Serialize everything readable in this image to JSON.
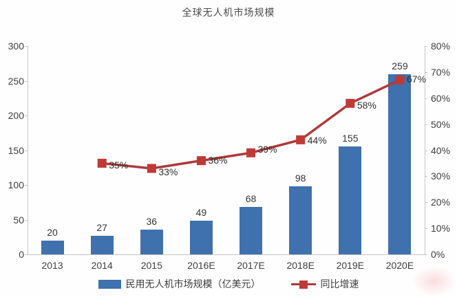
{
  "title": "全球无人机市场规模",
  "colors": {
    "bar": "#3e71ad",
    "line": "#ae3a3b",
    "marker": "#bf3a36",
    "axis_line": "#c6c6c6",
    "tick_text": "#3d3d3d",
    "title_text": "#4a4a4a",
    "watermark_pink": "#ee969e"
  },
  "chart_data": {
    "type": "bar",
    "combo": "bar+line",
    "title": "全球无人机市场规模",
    "categories": [
      "2013",
      "2014",
      "2015",
      "2016E",
      "2017E",
      "2018E",
      "2019E",
      "2020E"
    ],
    "series": [
      {
        "name": "民用无人机市场规模（亿美元）",
        "type": "bar",
        "axis": "left",
        "color": "#3e71ad",
        "values": [
          20,
          27,
          36,
          49,
          68,
          98,
          155,
          259
        ]
      },
      {
        "name": "同比增速",
        "type": "line",
        "axis": "right",
        "color": "#ae3a3b",
        "unit": "%",
        "values": [
          null,
          35,
          33,
          36,
          39,
          44,
          58,
          67
        ],
        "labels": [
          "",
          "35%",
          "33%",
          "36%",
          "39%",
          "44%",
          "58%",
          "67%"
        ]
      }
    ],
    "left_axis": {
      "min": 0,
      "max": 300,
      "step": 50,
      "tick_labels": [
        "0",
        "50",
        "100",
        "150",
        "200",
        "250",
        "300"
      ]
    },
    "right_axis": {
      "min": 0,
      "max": 80,
      "step": 10,
      "tick_labels": [
        "0%",
        "10%",
        "20%",
        "30%",
        "40%",
        "50%",
        "60%",
        "70%",
        "80%"
      ]
    },
    "grid": false,
    "data_labels": true,
    "legend_position": "bottom"
  },
  "legend": {
    "items": [
      {
        "label": "民用无人机市场规模（亿美元）",
        "swatch": "bar"
      },
      {
        "label": "同比增速",
        "swatch": "line-marker"
      }
    ]
  }
}
